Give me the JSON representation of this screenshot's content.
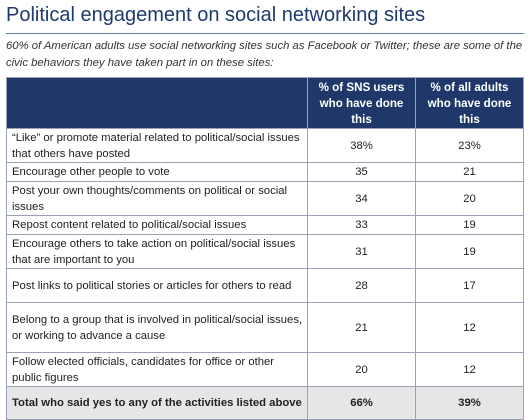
{
  "title": "Political engagement on social networking sites",
  "subtitle": "60% of American adults use social networking sites such as Facebook or Twitter; these are some of the civic behaviors they have taken part in on these sites:",
  "colors": {
    "header_bg": "#1f3869",
    "title": "#1f3a6e",
    "total_row_bg": "#e6e6e6"
  },
  "chart_data": {
    "type": "table",
    "columns": [
      "",
      "% of SNS users who have done this",
      "% of all adults who have done this"
    ],
    "rows": [
      {
        "label": "“Like” or promote material related to political/social issues that others have posted",
        "sns": "38%",
        "all": "23%"
      },
      {
        "label": "Encourage other people to vote",
        "sns": "35",
        "all": "21"
      },
      {
        "label": "Post your own thoughts/comments on political or social issues",
        "sns": "34",
        "all": "20"
      },
      {
        "label": "Repost content related to political/social issues",
        "sns": "33",
        "all": "19"
      },
      {
        "label": "Encourage others to take action on political/social issues that are important to you",
        "sns": "31",
        "all": "19"
      },
      {
        "label": "Post links to political stories or articles for others to read",
        "sns": "28",
        "all": "17"
      },
      {
        "label": "Belong to a group that is involved in political/social issues, or working to advance a cause",
        "sns": "21",
        "all": "12"
      },
      {
        "label": "Follow elected officials, candidates for office or other public figures",
        "sns": "20",
        "all": "12"
      }
    ],
    "total": {
      "label": "Total who said yes to any of the activities listed above",
      "sns": "66%",
      "all": "39%"
    }
  }
}
